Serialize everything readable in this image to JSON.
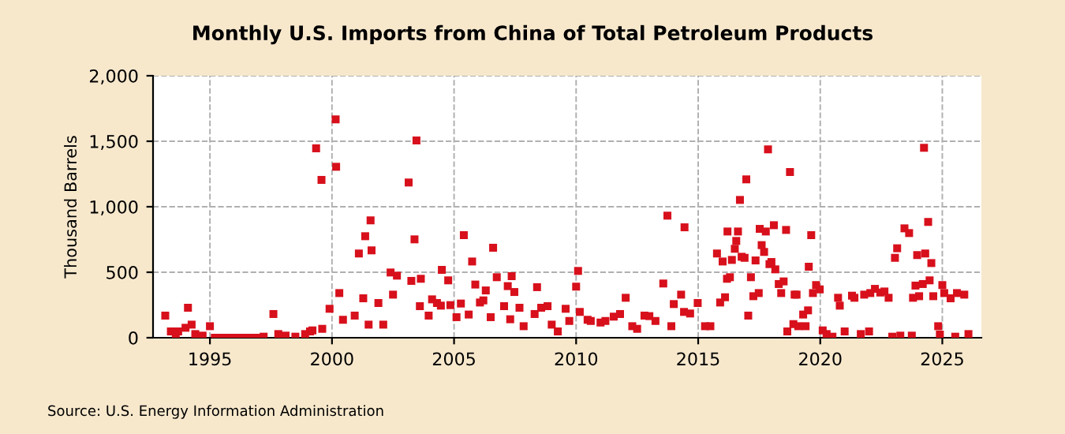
{
  "chart_data": {
    "type": "scatter",
    "title": "Monthly U.S. Imports from China of Total Petroleum Products",
    "ylabel": "Thousand Barrels",
    "annotations": [
      "Source: U.S. Energy Information Administration"
    ],
    "x": [
      1993.17,
      1993.4,
      1993.6,
      1993.7,
      1994.0,
      1994.1,
      1994.25,
      1994.4,
      1994.7,
      1995.0,
      1995.2,
      1995.4,
      1995.6,
      1995.8,
      1996.0,
      1996.2,
      1996.4,
      1996.6,
      1996.8,
      1997.0,
      1997.2,
      1997.6,
      1997.8,
      1998.1,
      1998.5,
      1998.9,
      1999.1,
      1999.2,
      1999.35,
      1999.57,
      1999.6,
      1999.9,
      2000.15,
      2000.17,
      2000.3,
      2000.45,
      2000.93,
      2001.1,
      2001.28,
      2001.36,
      2001.5,
      2001.58,
      2001.62,
      2001.9,
      2002.1,
      2002.4,
      2002.5,
      2002.66,
      2003.14,
      2003.25,
      2003.38,
      2003.46,
      2003.6,
      2003.64,
      2003.96,
      2004.1,
      2004.3,
      2004.46,
      2004.5,
      2004.76,
      2004.85,
      2005.1,
      2005.28,
      2005.4,
      2005.6,
      2005.74,
      2005.87,
      2006.06,
      2006.2,
      2006.3,
      2006.5,
      2006.6,
      2006.75,
      2007.05,
      2007.2,
      2007.3,
      2007.36,
      2007.47,
      2007.68,
      2007.85,
      2008.3,
      2008.4,
      2008.57,
      2008.83,
      2009.0,
      2009.25,
      2009.57,
      2009.72,
      2010.0,
      2010.08,
      2010.15,
      2010.47,
      2010.6,
      2011.0,
      2011.2,
      2011.54,
      2011.8,
      2012.03,
      2012.3,
      2012.5,
      2012.8,
      2013.0,
      2013.25,
      2013.57,
      2013.74,
      2013.9,
      2014.0,
      2014.3,
      2014.42,
      2014.44,
      2014.67,
      2014.98,
      2015.28,
      2015.5,
      2015.77,
      2015.9,
      2016.0,
      2016.1,
      2016.18,
      2016.2,
      2016.3,
      2016.38,
      2016.5,
      2016.56,
      2016.63,
      2016.71,
      2016.78,
      2016.9,
      2016.97,
      2017.05,
      2017.16,
      2017.26,
      2017.35,
      2017.48,
      2017.52,
      2017.6,
      2017.7,
      2017.77,
      2017.86,
      2017.92,
      2018.0,
      2018.1,
      2018.16,
      2018.3,
      2018.4,
      2018.5,
      2018.6,
      2018.65,
      2018.76,
      2018.9,
      2018.95,
      2019.03,
      2019.1,
      2019.3,
      2019.4,
      2019.5,
      2019.53,
      2019.63,
      2019.7,
      2019.83,
      2019.98,
      2020.1,
      2020.26,
      2020.5,
      2020.73,
      2020.8,
      2021.0,
      2021.3,
      2021.4,
      2021.66,
      2021.8,
      2022.0,
      2022.05,
      2022.24,
      2022.46,
      2022.63,
      2022.8,
      2022.95,
      2023.06,
      2023.15,
      2023.28,
      2023.45,
      2023.64,
      2023.75,
      2023.8,
      2023.9,
      2023.97,
      2024.05,
      2024.2,
      2024.25,
      2024.3,
      2024.42,
      2024.48,
      2024.55,
      2024.63,
      2024.83,
      2024.9,
      2025.0,
      2025.08,
      2025.34,
      2025.53,
      2025.6,
      2025.9,
      2026.07
    ],
    "series": [
      {
        "color": "#d7101c",
        "values": [
          169,
          48,
          16,
          48,
          76,
          229,
          100,
          28,
          16,
          88,
          0,
          0,
          0,
          0,
          0,
          0,
          0,
          0,
          0,
          0,
          8,
          181,
          28,
          16,
          8,
          28,
          48,
          56,
          1446,
          1205,
          68,
          221,
          1667,
          1305,
          341,
          137,
          169,
          643,
          301,
          775,
          100,
          896,
          667,
          265,
          100,
          498,
          329,
          474,
          1185,
          434,
          751,
          1506,
          241,
          450,
          169,
          293,
          265,
          245,
          518,
          438,
          249,
          157,
          261,
          783,
          177,
          582,
          406,
          269,
          285,
          361,
          157,
          687,
          462,
          241,
          394,
          141,
          470,
          349,
          229,
          88,
          181,
          386,
          229,
          241,
          100,
          48,
          221,
          128,
          390,
          510,
          197,
          137,
          128,
          116,
          128,
          161,
          181,
          305,
          88,
          68,
          169,
          165,
          128,
          414,
          932,
          88,
          257,
          329,
          197,
          843,
          185,
          265,
          88,
          88,
          643,
          269,
          582,
          309,
          450,
          811,
          462,
          594,
          679,
          739,
          811,
          1052,
          618,
          610,
          1209,
          169,
          462,
          317,
          590,
          341,
          831,
          707,
          655,
          811,
          1438,
          562,
          578,
          859,
          522,
          410,
          341,
          430,
          823,
          48,
          1265,
          104,
          329,
          329,
          88,
          177,
          88,
          209,
          542,
          783,
          341,
          402,
          369,
          56,
          28,
          8,
          305,
          245,
          48,
          321,
          305,
          28,
          329,
          48,
          341,
          373,
          345,
          353,
          305,
          8,
          610,
          683,
          16,
          835,
          799,
          16,
          305,
          398,
          631,
          317,
          410,
          1450,
          643,
          884,
          438,
          570,
          317,
          88,
          24,
          402,
          341,
          301,
          8,
          341,
          329,
          28
        ]
      }
    ],
    "xlim": [
      1992.67,
      2026.6
    ],
    "xticks": [
      1995,
      2000,
      2005,
      2010,
      2015,
      2020,
      2025
    ],
    "ylim": [
      0,
      2000
    ],
    "yticks": [
      0,
      500,
      {
        "value": 1000,
        "label": "1,000"
      },
      {
        "value": 1500,
        "label": "1,500"
      },
      {
        "value": 2000,
        "label": "2,000"
      }
    ],
    "grid": true,
    "marker": "square"
  }
}
